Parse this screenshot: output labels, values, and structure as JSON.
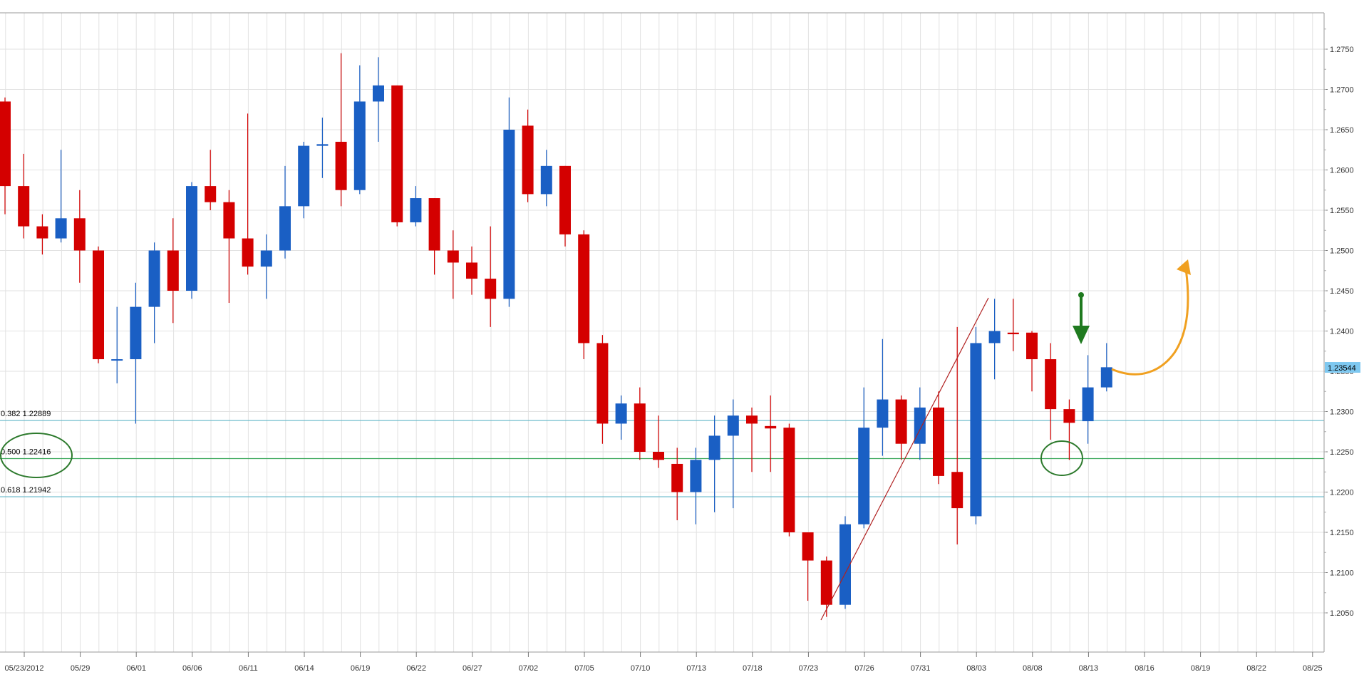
{
  "chart_data": {
    "type": "candlestick",
    "title": "",
    "xlabel": "",
    "ylabel": "",
    "ylim": [
      1.203,
      1.279
    ],
    "grid": true,
    "colors": {
      "up": "#1a5fc4",
      "down": "#d40000",
      "grid": "#e2e2e2",
      "fib_line": "#5fb6c8",
      "fib_mid_line": "#3aa85a",
      "annotation_green": "#1f7a1f",
      "annotation_orange": "#f0a020",
      "trendline": "#b02020",
      "price_tag": "#7ec8f0"
    },
    "x_tick_labels": [
      "05/23/2012",
      "05/29",
      "06/01",
      "06/06",
      "06/11",
      "06/14",
      "06/19",
      "06/22",
      "06/27",
      "07/02",
      "07/05",
      "07/10",
      "07/13",
      "07/18",
      "07/23",
      "07/26",
      "07/31",
      "08/03",
      "08/08",
      "08/13",
      "08/16",
      "08/19",
      "08/22",
      "08/25"
    ],
    "y_tick_labels": [
      "1.2750",
      "1.2700",
      "1.2650",
      "1.2600",
      "1.2550",
      "1.2500",
      "1.2450",
      "1.2400",
      "1.2350",
      "1.2300",
      "1.2250",
      "1.2200",
      "1.2150",
      "1.2100",
      "1.2050"
    ],
    "y_ticks": [
      1.275,
      1.27,
      1.265,
      1.26,
      1.255,
      1.25,
      1.245,
      1.24,
      1.235,
      1.23,
      1.225,
      1.22,
      1.215,
      1.21,
      1.205
    ],
    "current_price": "1.23544",
    "fib_levels": [
      {
        "label": "0.382 1.22889",
        "value": 1.22889
      },
      {
        "label": "0.500 1.22416",
        "value": 1.22416
      },
      {
        "label": "0.618 1.21942",
        "value": 1.21942
      }
    ],
    "candles": [
      {
        "o": 1.2685,
        "h": 1.269,
        "l": 1.2545,
        "c": 1.258
      },
      {
        "o": 1.258,
        "h": 1.262,
        "l": 1.2515,
        "c": 1.253
      },
      {
        "o": 1.253,
        "h": 1.2545,
        "l": 1.2495,
        "c": 1.2515
      },
      {
        "o": 1.2515,
        "h": 1.2625,
        "l": 1.251,
        "c": 1.254
      },
      {
        "o": 1.254,
        "h": 1.2575,
        "l": 1.246,
        "c": 1.25
      },
      {
        "o": 1.25,
        "h": 1.2505,
        "l": 1.236,
        "c": 1.2365
      },
      {
        "o": 1.2365,
        "h": 1.243,
        "l": 1.2335,
        "c": 1.2365
      },
      {
        "o": 1.2365,
        "h": 1.246,
        "l": 1.2285,
        "c": 1.243
      },
      {
        "o": 1.243,
        "h": 1.251,
        "l": 1.2385,
        "c": 1.25
      },
      {
        "o": 1.25,
        "h": 1.254,
        "l": 1.241,
        "c": 1.245
      },
      {
        "o": 1.245,
        "h": 1.2585,
        "l": 1.244,
        "c": 1.258
      },
      {
        "o": 1.258,
        "h": 1.2625,
        "l": 1.255,
        "c": 1.256
      },
      {
        "o": 1.256,
        "h": 1.2575,
        "l": 1.2435,
        "c": 1.2515
      },
      {
        "o": 1.2515,
        "h": 1.267,
        "l": 1.247,
        "c": 1.248
      },
      {
        "o": 1.248,
        "h": 1.252,
        "l": 1.244,
        "c": 1.25
      },
      {
        "o": 1.25,
        "h": 1.2605,
        "l": 1.249,
        "c": 1.2555
      },
      {
        "o": 1.2555,
        "h": 1.2635,
        "l": 1.254,
        "c": 1.263
      },
      {
        "o": 1.263,
        "h": 1.2665,
        "l": 1.259,
        "c": 1.2632
      },
      {
        "o": 1.2635,
        "h": 1.2745,
        "l": 1.2555,
        "c": 1.2575
      },
      {
        "o": 1.2575,
        "h": 1.273,
        "l": 1.257,
        "c": 1.2685
      },
      {
        "o": 1.2685,
        "h": 1.274,
        "l": 1.2635,
        "c": 1.2705
      },
      {
        "o": 1.2705,
        "h": 1.2705,
        "l": 1.253,
        "c": 1.2535
      },
      {
        "o": 1.2535,
        "h": 1.258,
        "l": 1.253,
        "c": 1.2565
      },
      {
        "o": 1.2565,
        "h": 1.2565,
        "l": 1.247,
        "c": 1.25
      },
      {
        "o": 1.25,
        "h": 1.2525,
        "l": 1.244,
        "c": 1.2485
      },
      {
        "o": 1.2485,
        "h": 1.2505,
        "l": 1.2445,
        "c": 1.2465
      },
      {
        "o": 1.2465,
        "h": 1.253,
        "l": 1.2405,
        "c": 1.244
      },
      {
        "o": 1.244,
        "h": 1.269,
        "l": 1.243,
        "c": 1.265
      },
      {
        "o": 1.2655,
        "h": 1.2675,
        "l": 1.256,
        "c": 1.257
      },
      {
        "o": 1.257,
        "h": 1.2625,
        "l": 1.2555,
        "c": 1.2605
      },
      {
        "o": 1.2605,
        "h": 1.2605,
        "l": 1.2505,
        "c": 1.252
      },
      {
        "o": 1.252,
        "h": 1.2525,
        "l": 1.2365,
        "c": 1.2385
      },
      {
        "o": 1.2385,
        "h": 1.2395,
        "l": 1.226,
        "c": 1.2285
      },
      {
        "o": 1.2285,
        "h": 1.232,
        "l": 1.2265,
        "c": 1.231
      },
      {
        "o": 1.231,
        "h": 1.233,
        "l": 1.224,
        "c": 1.225
      },
      {
        "o": 1.225,
        "h": 1.2295,
        "l": 1.223,
        "c": 1.224
      },
      {
        "o": 1.2235,
        "h": 1.2255,
        "l": 1.2165,
        "c": 1.22
      },
      {
        "o": 1.22,
        "h": 1.2255,
        "l": 1.216,
        "c": 1.224
      },
      {
        "o": 1.224,
        "h": 1.2295,
        "l": 1.2175,
        "c": 1.227
      },
      {
        "o": 1.227,
        "h": 1.2315,
        "l": 1.218,
        "c": 1.2295
      },
      {
        "o": 1.2295,
        "h": 1.2305,
        "l": 1.2225,
        "c": 1.2285
      },
      {
        "o": 1.2282,
        "h": 1.232,
        "l": 1.2225,
        "c": 1.2279
      },
      {
        "o": 1.228,
        "h": 1.2285,
        "l": 1.2145,
        "c": 1.215
      },
      {
        "o": 1.215,
        "h": 1.215,
        "l": 1.2065,
        "c": 1.2115
      },
      {
        "o": 1.2115,
        "h": 1.212,
        "l": 1.2045,
        "c": 1.206
      },
      {
        "o": 1.206,
        "h": 1.217,
        "l": 1.2055,
        "c": 1.216
      },
      {
        "o": 1.216,
        "h": 1.233,
        "l": 1.2155,
        "c": 1.228
      },
      {
        "o": 1.228,
        "h": 1.239,
        "l": 1.2245,
        "c": 1.2315
      },
      {
        "o": 1.2315,
        "h": 1.232,
        "l": 1.224,
        "c": 1.226
      },
      {
        "o": 1.226,
        "h": 1.233,
        "l": 1.224,
        "c": 1.2305
      },
      {
        "o": 1.2305,
        "h": 1.2325,
        "l": 1.221,
        "c": 1.222
      },
      {
        "o": 1.2225,
        "h": 1.2405,
        "l": 1.2135,
        "c": 1.218
      },
      {
        "o": 1.217,
        "h": 1.2405,
        "l": 1.216,
        "c": 1.2385
      },
      {
        "o": 1.2385,
        "h": 1.244,
        "l": 1.234,
        "c": 1.24
      },
      {
        "o": 1.2398,
        "h": 1.244,
        "l": 1.2375,
        "c": 1.2396
      },
      {
        "o": 1.2398,
        "h": 1.24,
        "l": 1.2325,
        "c": 1.2365
      },
      {
        "o": 1.2365,
        "h": 1.2385,
        "l": 1.2265,
        "c": 1.2303
      },
      {
        "o": 1.2303,
        "h": 1.2315,
        "l": 1.224,
        "c": 1.2286
      },
      {
        "o": 1.2288,
        "h": 1.237,
        "l": 1.226,
        "c": 1.233
      },
      {
        "o": 1.233,
        "h": 1.2385,
        "l": 1.2325,
        "c": 1.2355
      }
    ]
  }
}
